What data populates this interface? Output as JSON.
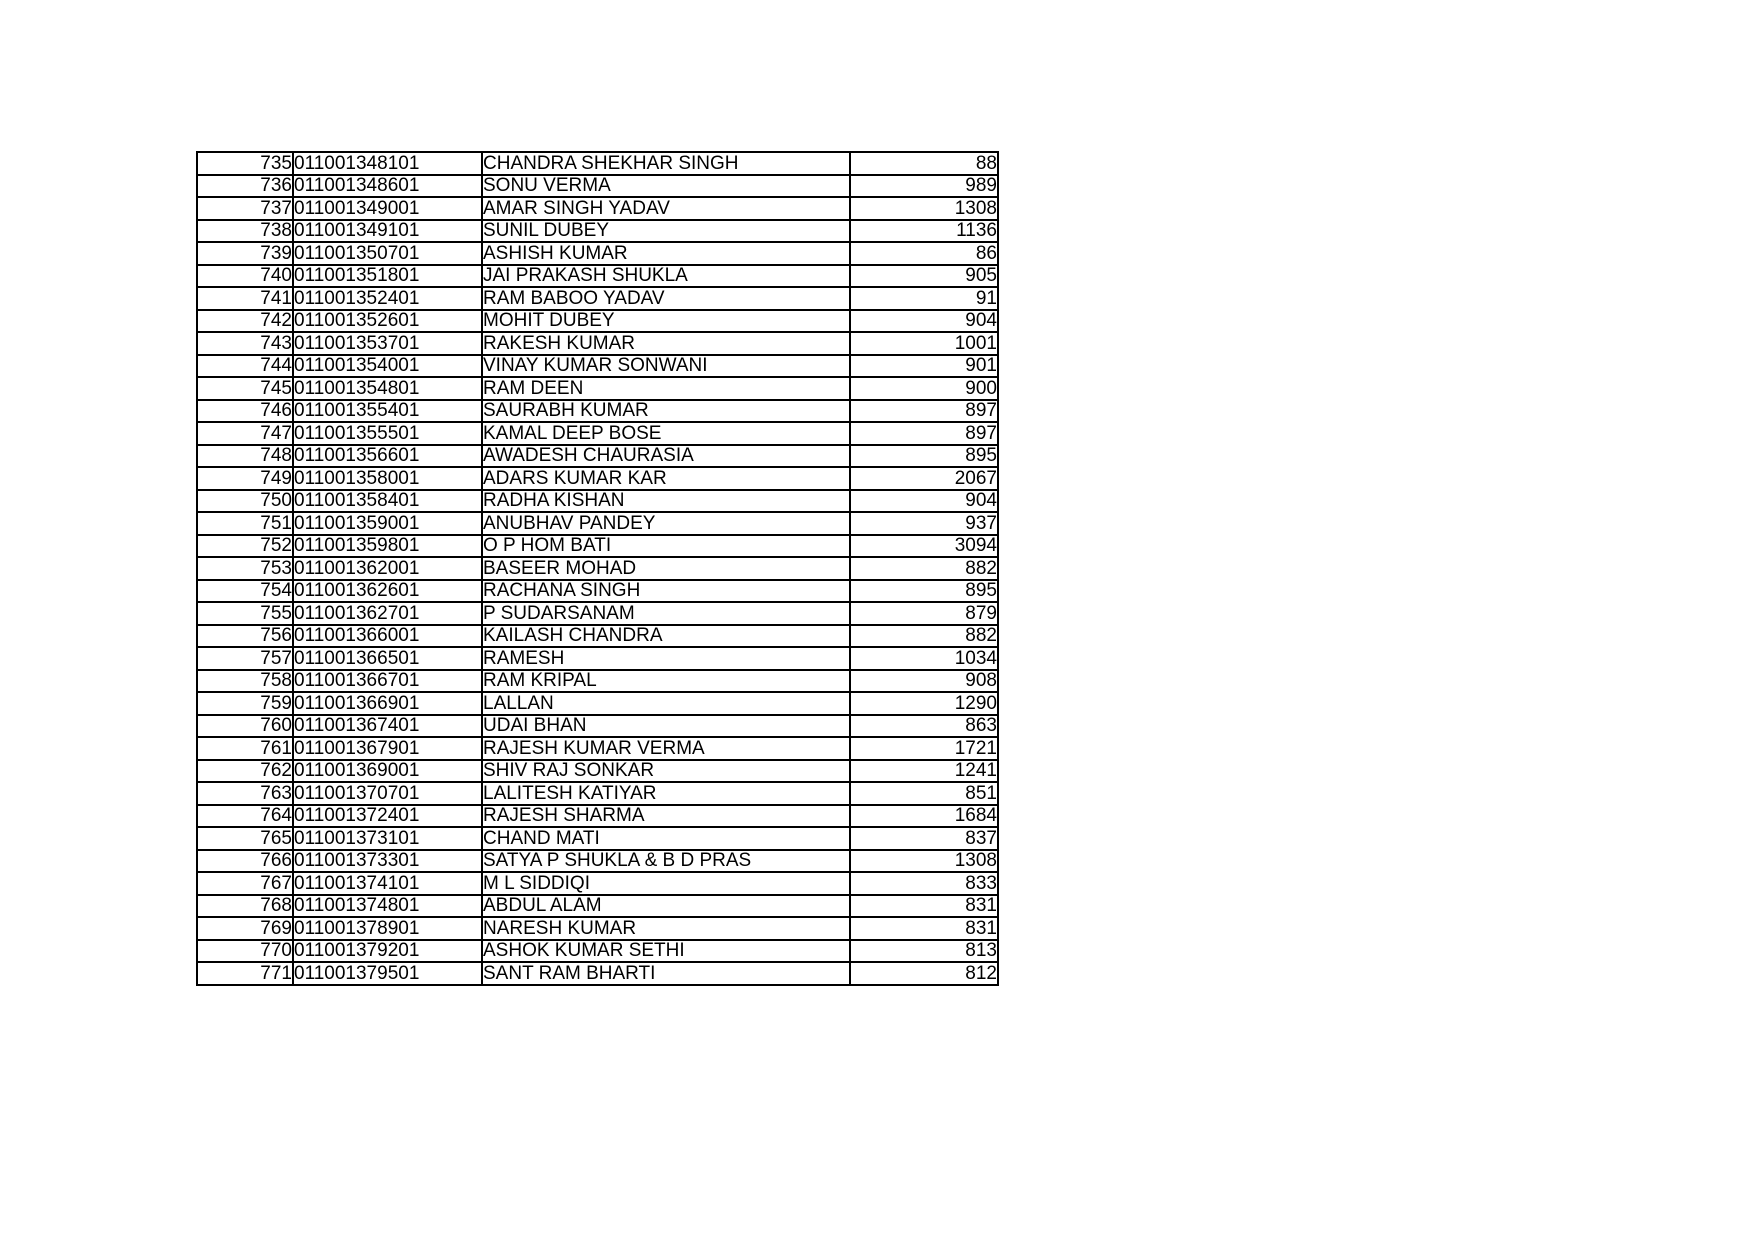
{
  "colors": {
    "page_background": "#ffffff",
    "table_border": "#000000",
    "text": "#000000"
  },
  "table": {
    "columns": [
      "serial",
      "account_number",
      "name",
      "amount"
    ],
    "rows": [
      {
        "sno": "735",
        "account": "011001348101",
        "name": "CHANDRA SHEKHAR SINGH",
        "value": "88"
      },
      {
        "sno": "736",
        "account": "011001348601",
        "name": "SONU VERMA",
        "value": "989"
      },
      {
        "sno": "737",
        "account": "011001349001",
        "name": "AMAR SINGH YADAV",
        "value": "1308"
      },
      {
        "sno": "738",
        "account": "011001349101",
        "name": "SUNIL DUBEY",
        "value": "1136"
      },
      {
        "sno": "739",
        "account": "011001350701",
        "name": "ASHISH KUMAR",
        "value": "86"
      },
      {
        "sno": "740",
        "account": "011001351801",
        "name": "JAI PRAKASH SHUKLA",
        "value": "905"
      },
      {
        "sno": "741",
        "account": "011001352401",
        "name": "RAM BABOO YADAV",
        "value": "91"
      },
      {
        "sno": "742",
        "account": "011001352601",
        "name": "MOHIT DUBEY",
        "value": "904"
      },
      {
        "sno": "743",
        "account": "011001353701",
        "name": "RAKESH KUMAR",
        "value": "1001"
      },
      {
        "sno": "744",
        "account": "011001354001",
        "name": "VINAY KUMAR SONWANI",
        "value": "901"
      },
      {
        "sno": "745",
        "account": "011001354801",
        "name": "RAM DEEN",
        "value": "900"
      },
      {
        "sno": "746",
        "account": "011001355401",
        "name": "SAURABH KUMAR",
        "value": "897"
      },
      {
        "sno": "747",
        "account": "011001355501",
        "name": "KAMAL DEEP BOSE",
        "value": "897"
      },
      {
        "sno": "748",
        "account": "011001356601",
        "name": "AWADESH CHAURASIA",
        "value": "895"
      },
      {
        "sno": "749",
        "account": "011001358001",
        "name": "ADARS KUMAR KAR",
        "value": "2067"
      },
      {
        "sno": "750",
        "account": "011001358401",
        "name": "RADHA KISHAN",
        "value": "904"
      },
      {
        "sno": "751",
        "account": "011001359001",
        "name": "ANUBHAV PANDEY",
        "value": "937"
      },
      {
        "sno": "752",
        "account": "011001359801",
        "name": "O P HOM BATI",
        "value": "3094"
      },
      {
        "sno": "753",
        "account": "011001362001",
        "name": "BASEER MOHAD",
        "value": "882"
      },
      {
        "sno": "754",
        "account": "011001362601",
        "name": "RACHANA SINGH",
        "value": "895"
      },
      {
        "sno": "755",
        "account": "011001362701",
        "name": "P SUDARSANAM",
        "value": "879"
      },
      {
        "sno": "756",
        "account": "011001366001",
        "name": "KAILASH CHANDRA",
        "value": "882"
      },
      {
        "sno": "757",
        "account": "011001366501",
        "name": "RAMESH",
        "value": "1034"
      },
      {
        "sno": "758",
        "account": "011001366701",
        "name": "RAM KRIPAL",
        "value": "908"
      },
      {
        "sno": "759",
        "account": "011001366901",
        "name": "LALLAN",
        "value": "1290"
      },
      {
        "sno": "760",
        "account": "011001367401",
        "name": "UDAI BHAN",
        "value": "863"
      },
      {
        "sno": "761",
        "account": "011001367901",
        "name": "RAJESH KUMAR VERMA",
        "value": "1721"
      },
      {
        "sno": "762",
        "account": "011001369001",
        "name": "SHIV RAJ SONKAR",
        "value": "1241"
      },
      {
        "sno": "763",
        "account": "011001370701",
        "name": "LALITESH KATIYAR",
        "value": "851"
      },
      {
        "sno": "764",
        "account": "011001372401",
        "name": "RAJESH SHARMA",
        "value": "1684"
      },
      {
        "sno": "765",
        "account": "011001373101",
        "name": "CHAND MATI",
        "value": "837"
      },
      {
        "sno": "766",
        "account": "011001373301",
        "name": "SATYA P SHUKLA & B D PRAS",
        "value": "1308"
      },
      {
        "sno": "767",
        "account": "011001374101",
        "name": "M L SIDDIQI",
        "value": "833"
      },
      {
        "sno": "768",
        "account": "011001374801",
        "name": "ABDUL ALAM",
        "value": "831"
      },
      {
        "sno": "769",
        "account": "011001378901",
        "name": "NARESH KUMAR",
        "value": "831"
      },
      {
        "sno": "770",
        "account": "011001379201",
        "name": "ASHOK KUMAR SETHI",
        "value": "813"
      },
      {
        "sno": "771",
        "account": "011001379501",
        "name": "SANT RAM BHARTI",
        "value": "812"
      }
    ]
  }
}
